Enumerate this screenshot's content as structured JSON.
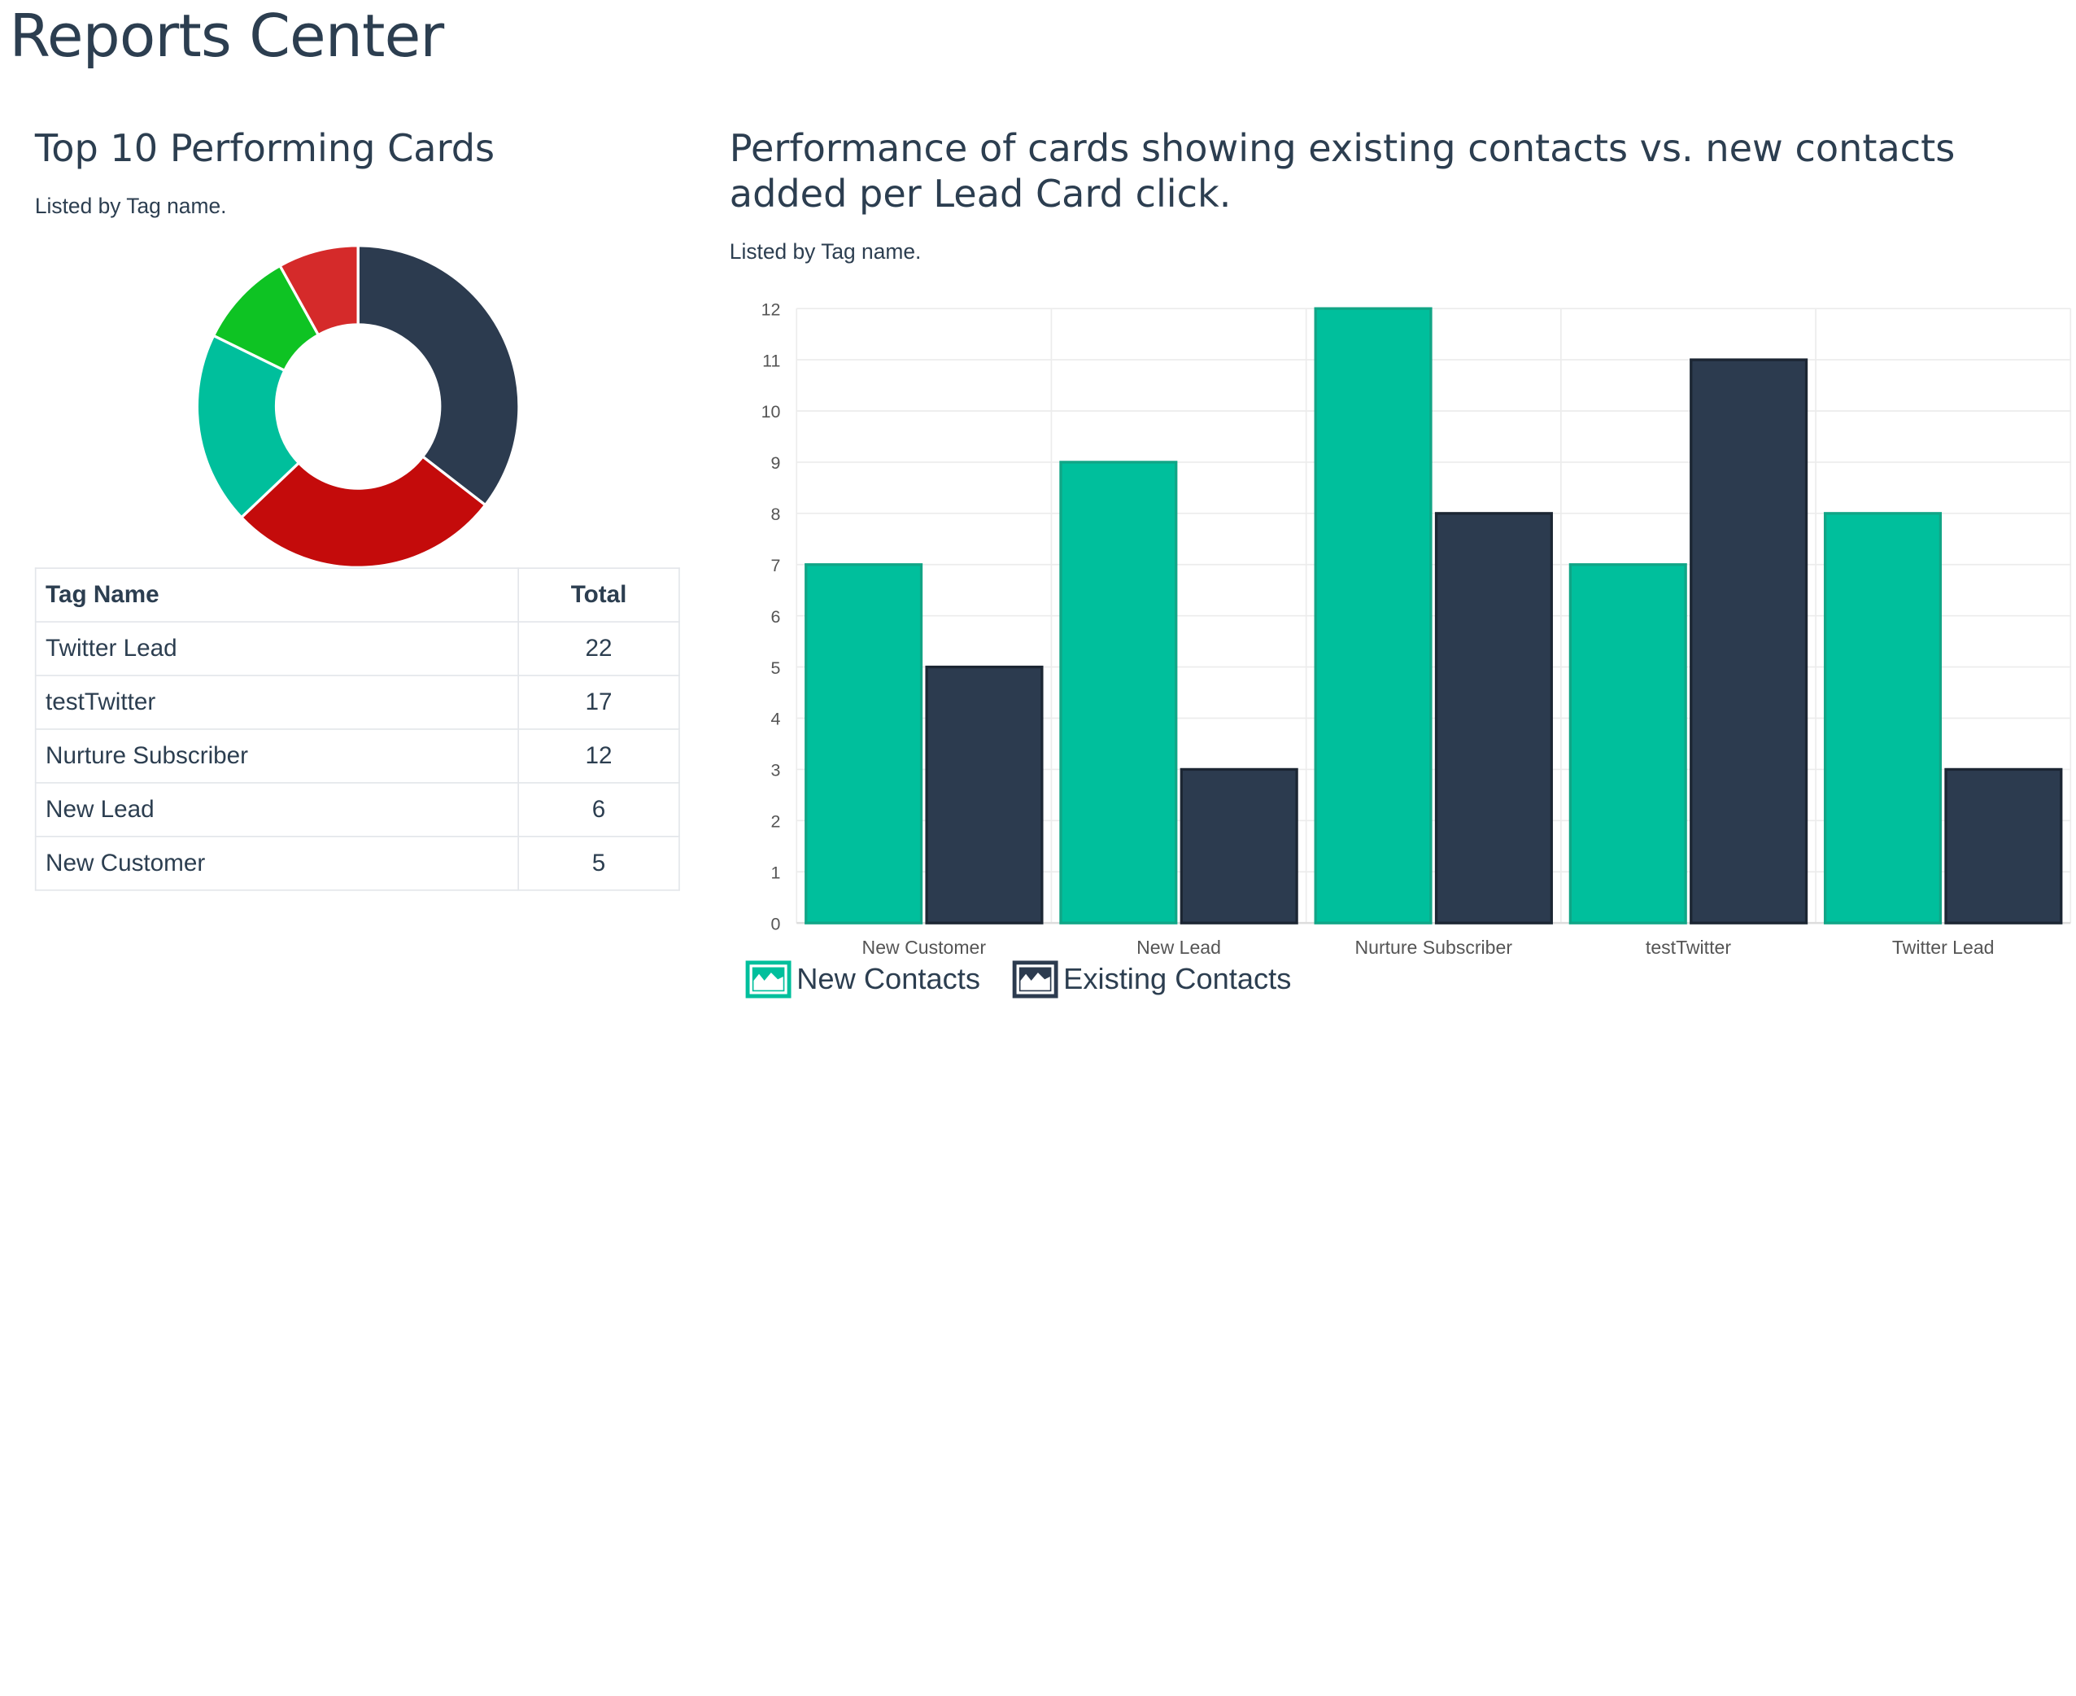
{
  "page": {
    "title": "Reports Center"
  },
  "left_panel": {
    "title": "Top 10 Performing Cards",
    "subtitle": "Listed by Tag name.",
    "table": {
      "headers": [
        "Tag Name",
        "Total"
      ],
      "rows": [
        {
          "tag": "Twitter Lead",
          "total": "22"
        },
        {
          "tag": "testTwitter",
          "total": "17"
        },
        {
          "tag": "Nurture Subscriber",
          "total": "12"
        },
        {
          "tag": "New Lead",
          "total": "6"
        },
        {
          "tag": "New Customer",
          "total": "5"
        }
      ]
    }
  },
  "right_panel": {
    "title": "Performance of cards showing existing contacts vs. new contacts added per Lead Card click.",
    "subtitle": "Listed by Tag name."
  },
  "legend": {
    "new_contacts": "New Contacts",
    "existing_contacts": "Existing Contacts"
  },
  "colors": {
    "navy": "#2c3b4f",
    "teal": "#00bf9c",
    "teal_border": "#11a586",
    "red": "#c40b0b",
    "red_light": "#d52a2a",
    "green": "#0ec323",
    "grid": "#ececec",
    "axis_text": "#555555"
  },
  "chart_data": [
    {
      "type": "pie",
      "labels": [
        "Twitter Lead",
        "testTwitter",
        "Nurture Subscriber",
        "New Lead",
        "New Customer"
      ],
      "values": [
        22,
        17,
        12,
        6,
        5
      ],
      "colors": [
        "#2c3b4f",
        "#c40b0b",
        "#00bf9c",
        "#0ec323",
        "#d52a2a"
      ],
      "donut": true
    },
    {
      "type": "bar",
      "categories": [
        "New Customer",
        "New Lead",
        "Nurture Subscriber",
        "testTwitter",
        "Twitter Lead"
      ],
      "series": [
        {
          "name": "New Contacts",
          "values": [
            7,
            9,
            12,
            7,
            8
          ],
          "color": "#00bf9c"
        },
        {
          "name": "Existing Contacts",
          "values": [
            5,
            3,
            8,
            11,
            3
          ],
          "color": "#2c3b4f"
        }
      ],
      "ylim": [
        0,
        12
      ],
      "yticks": [
        0,
        1,
        2,
        3,
        4,
        5,
        6,
        7,
        8,
        9,
        10,
        11,
        12
      ],
      "grid": true,
      "legend": "bottom-left"
    }
  ]
}
